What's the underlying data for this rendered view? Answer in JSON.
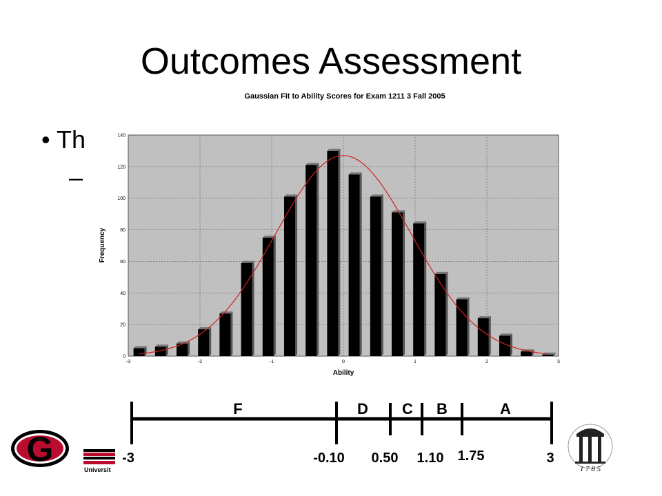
{
  "slide": {
    "title": "Outcomes Assessment",
    "bullet_text": "Th",
    "dash_text": "–"
  },
  "chart_data": {
    "type": "bar",
    "title": "Gaussian Fit to Ability Scores for Exam 1211 3 Fall 2005",
    "xlabel": "Ability",
    "ylabel": "Frequency",
    "xlim": [
      -3,
      3
    ],
    "ylim": [
      0,
      140
    ],
    "xticks": [
      "-3",
      "-2",
      "-1",
      "0",
      "1",
      "2",
      "3"
    ],
    "yticks": [
      "0",
      "20",
      "40",
      "60",
      "80",
      "100",
      "120",
      "140"
    ],
    "grid": true,
    "x": [
      -2.85,
      -2.55,
      -2.25,
      -1.95,
      -1.65,
      -1.35,
      -1.05,
      -0.75,
      -0.45,
      -0.15,
      0.15,
      0.45,
      0.75,
      1.05,
      1.35,
      1.65,
      1.95,
      2.25,
      2.55,
      2.85
    ],
    "values": [
      5,
      6,
      8,
      17,
      27,
      59,
      75,
      101,
      121,
      130,
      115,
      101,
      91,
      84,
      52,
      36,
      24,
      13,
      3,
      1
    ],
    "fit": {
      "name": "Gaussian fit",
      "mean": 0.0,
      "sigma": 0.95,
      "peak": 127,
      "color": "#d22020"
    }
  },
  "grade_scale": {
    "letters": [
      "F",
      "D",
      "C",
      "B",
      "A"
    ],
    "cutoffs": [
      "-3",
      "-0.10",
      "0.50",
      "1.10",
      "1.75",
      "3"
    ]
  },
  "footer": {
    "logo_letter": "G",
    "university_label": "Universit",
    "arch_year": "1 7 8 5"
  },
  "colors": {
    "bar": "#000000",
    "plot_bg": "#c0c0c0",
    "fit_line": "#d22020",
    "logo_red": "#ba0c2f"
  }
}
